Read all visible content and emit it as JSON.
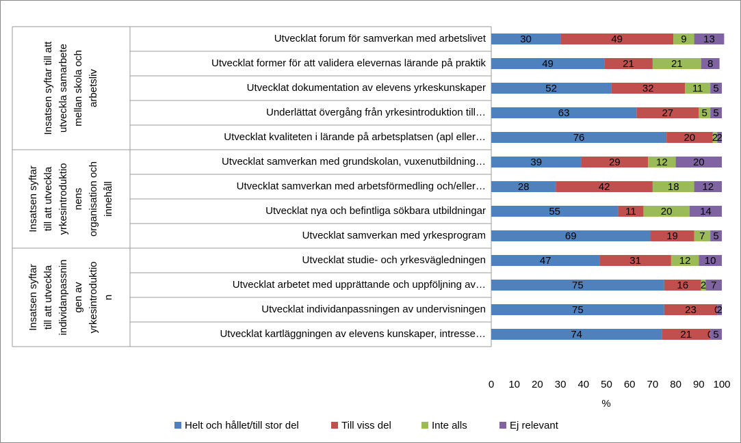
{
  "chart_data": {
    "type": "stacked-bar-horizontal",
    "x_label": "%",
    "xlim": [
      0,
      100
    ],
    "xticks": [
      0,
      10,
      20,
      30,
      40,
      50,
      60,
      70,
      80,
      90,
      100
    ],
    "groups": [
      {
        "lines": [
          "Insatsen syftar till att",
          "utveckla samarbete",
          "mellan skola och",
          "arbetsliv"
        ],
        "rows": 5
      },
      {
        "lines": [
          "Insatsen syftar",
          "till att utveckla",
          "yrkesintroduktio",
          "nens",
          "organisation och",
          "innehåll"
        ],
        "rows": 4
      },
      {
        "lines": [
          "Insatsen syftar",
          "till att utveckla",
          "individanpassnin",
          "gen av",
          "yrkesintroduktio",
          "n"
        ],
        "rows": 4
      }
    ],
    "categories": [
      "Utvecklat forum för samverkan med arbetslivet",
      "Utvecklat former för att validera elevernas lärande på praktik",
      "Utvecklat dokumentation av elevens yrkeskunskaper",
      "Underlättat övergång från yrkesintroduktion till…",
      "Utvecklat kvaliteten i lärande på arbetsplatsen (apl eller…",
      "Utvecklat samverkan med grundskolan, vuxenutbildning…",
      "Utvecklat samverkan med arbetsförmedling och/eller…",
      "Utvecklat nya och befintliga sökbara utbildningar",
      "Utvecklat samverkan med yrkesprogram",
      "Utvecklat studie- och yrkesvägledningen",
      "Utvecklat arbetet med upprättande och uppföljning av…",
      "Utvecklat individanpassningen av undervisningen",
      "Utvecklat kartläggningen av elevens kunskaper, intresse…"
    ],
    "series": [
      {
        "name": "Helt och hållet/till stor del",
        "color": "#4f81bd",
        "values": [
          30,
          49,
          52,
          63,
          76,
          39,
          28,
          55,
          69,
          47,
          75,
          75,
          74
        ]
      },
      {
        "name": "Till viss del",
        "color": "#c0504d",
        "values": [
          49,
          21,
          32,
          27,
          20,
          29,
          42,
          11,
          19,
          31,
          16,
          23,
          21
        ]
      },
      {
        "name": "Inte alls",
        "color": "#9bbb59",
        "values": [
          9,
          21,
          11,
          5,
          2,
          12,
          18,
          20,
          7,
          12,
          2,
          0,
          0
        ]
      },
      {
        "name": "Ej relevant",
        "color": "#8064a2",
        "values": [
          13,
          8,
          5,
          5,
          2,
          20,
          12,
          14,
          5,
          10,
          7,
          2,
          5
        ]
      }
    ]
  }
}
